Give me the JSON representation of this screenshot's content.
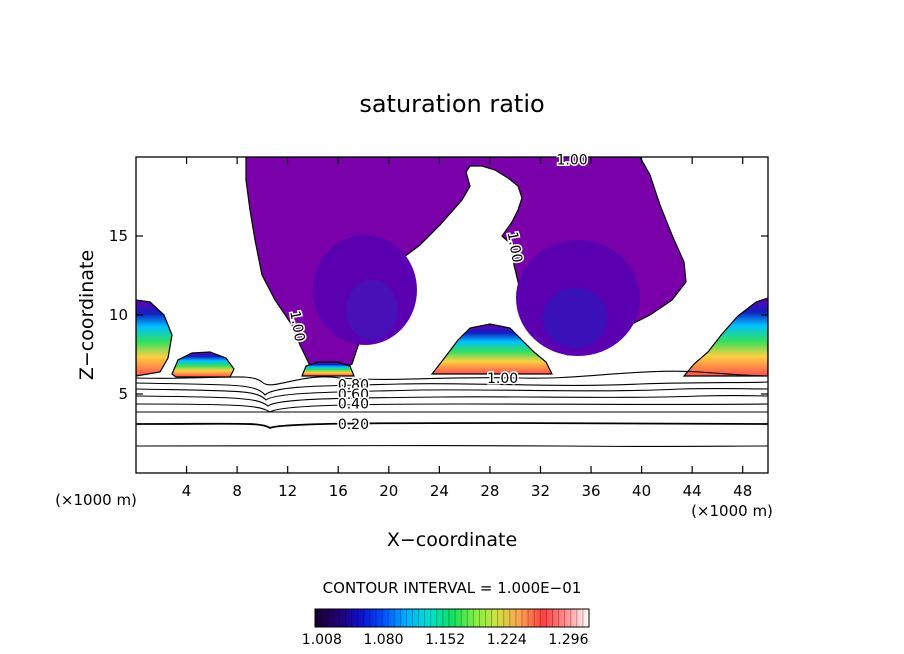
{
  "chart_data": {
    "type": "heatmap",
    "title": "saturation ratio",
    "xlabel": "X−coordinate",
    "ylabel": "Z−coordinate",
    "x_unit_left": "(×1000 m)",
    "x_unit_right": "(×1000 m)",
    "xlim": [
      0,
      50
    ],
    "ylim": [
      0,
      20
    ],
    "x_ticks": [
      4,
      8,
      12,
      16,
      20,
      24,
      28,
      32,
      36,
      40,
      44,
      48
    ],
    "y_ticks": [
      5,
      10,
      15
    ],
    "contour_interval_text": "CONTOUR INTERVAL = 1.000E−01",
    "contour_labels": [
      {
        "text": "1.00",
        "x": 34.5,
        "z": 19.85
      },
      {
        "text": "1.00",
        "x": 30.0,
        "z": 14.3
      },
      {
        "text": "1.00",
        "x": 12.8,
        "z": 9.3
      },
      {
        "text": "1.00",
        "x": 29.0,
        "z": 6.0
      },
      {
        "text": "0.80",
        "x": 17.2,
        "z": 5.6
      },
      {
        "text": "0.60",
        "x": 17.2,
        "z": 5.0
      },
      {
        "text": "0.40",
        "x": 17.2,
        "z": 4.4
      },
      {
        "text": "0.20",
        "x": 17.2,
        "z": 3.1
      }
    ],
    "colorbar": {
      "ticks": [
        "1.008",
        "1.080",
        "1.152",
        "1.224",
        "1.296"
      ],
      "min": 1.0,
      "max": 1.32,
      "stops": [
        "#180030",
        "#220070",
        "#1010d0",
        "#0050ff",
        "#00b0ff",
        "#00e0d0",
        "#10e060",
        "#80f040",
        "#d0e040",
        "#ffa050",
        "#ff4040",
        "#ff9090",
        "#ffffff"
      ]
    },
    "grid": false,
    "legend": "none"
  }
}
